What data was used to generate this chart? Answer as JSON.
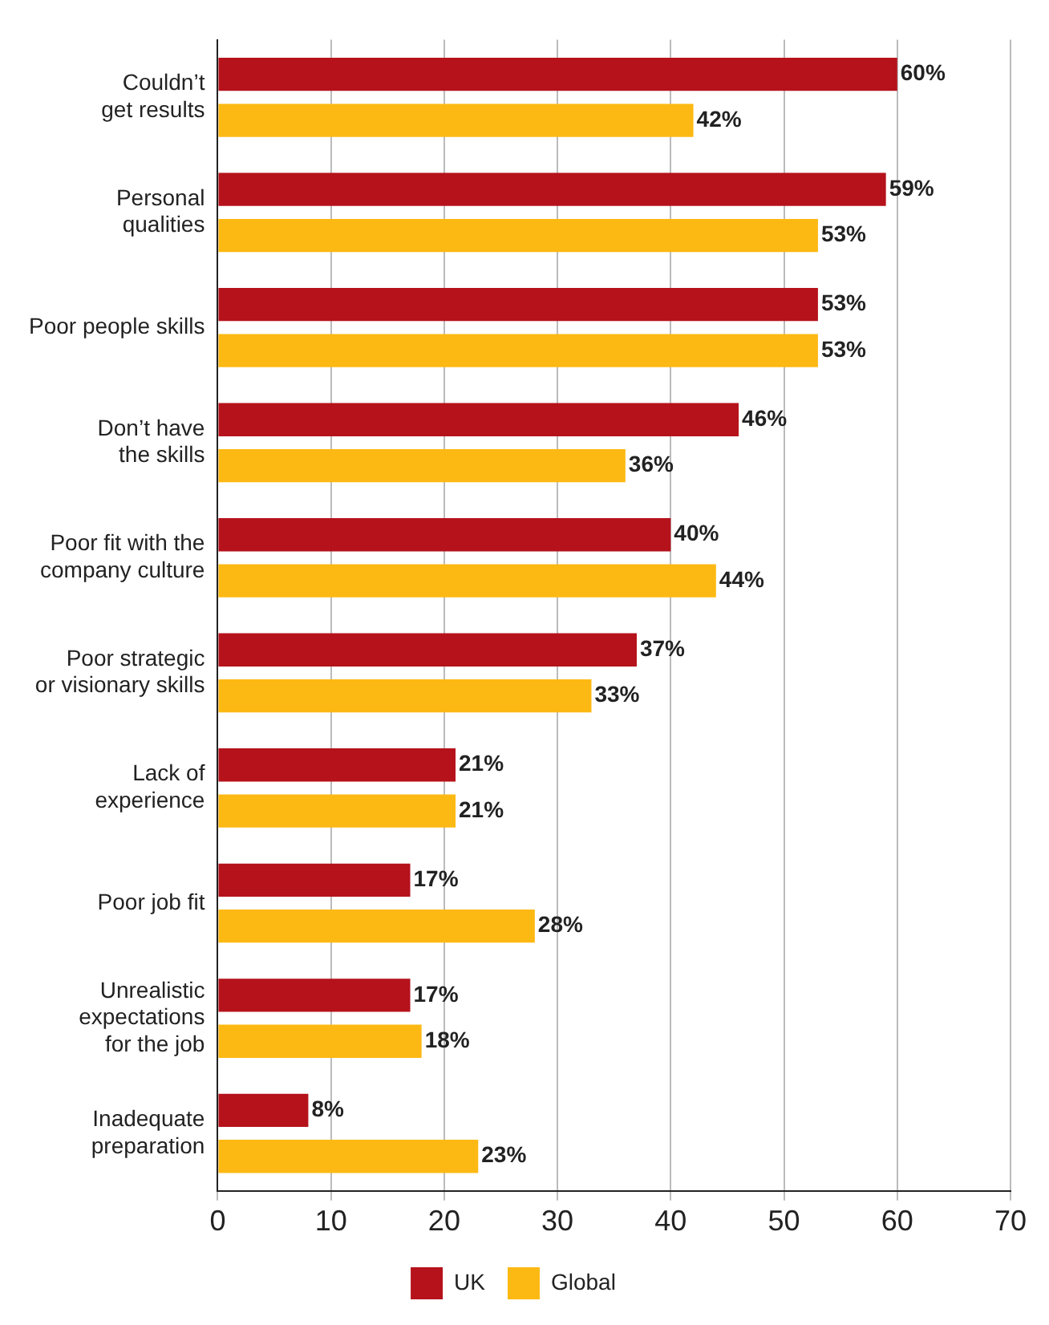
{
  "chart_data": {
    "type": "bar",
    "orientation": "horizontal",
    "categories": [
      "Couldn’t\nget results",
      "Personal\nqualities",
      "Poor people skills",
      "Don’t have\nthe skills",
      "Poor fit with the\ncompany culture",
      "Poor strategic\nor visionary skills",
      "Lack of\nexperience",
      "Poor job fit",
      "Unrealistic\nexpectations\nfor the job",
      "Inadequate\npreparation"
    ],
    "series": [
      {
        "name": "UK",
        "color": "#b5121b",
        "values": [
          60,
          59,
          53,
          46,
          40,
          37,
          21,
          17,
          17,
          8
        ]
      },
      {
        "name": "Global",
        "color": "#fdb913",
        "values": [
          42,
          53,
          53,
          36,
          44,
          33,
          21,
          28,
          18,
          23
        ]
      }
    ],
    "value_labels": [
      [
        "60%",
        "59%",
        "53%",
        "46%",
        "40%",
        "37%",
        "21%",
        "17%",
        "17%",
        "8%"
      ],
      [
        "42%",
        "53%",
        "53%",
        "36%",
        "44%",
        "33%",
        "21%",
        "28%",
        "18%",
        "23%"
      ]
    ],
    "xlim": [
      0,
      70
    ],
    "xticks": [
      0,
      10,
      20,
      30,
      40,
      50,
      60,
      70
    ],
    "grid": "x",
    "legend": "bottom"
  }
}
